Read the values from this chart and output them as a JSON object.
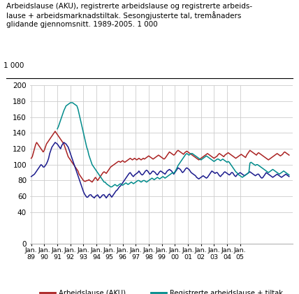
{
  "title_line1": "Arbeidslause (AKU), registrerte arbeidslause og registrerte arbeids-",
  "title_line2": "lause + arbeidsmarknadstiltak. Sesongjusterte tal, tremånaders",
  "title_line3": "glidande gjennomsnitt. 1989-2005. 1 000",
  "ylabel_top": "1 000",
  "ylim": [
    0,
    200
  ],
  "yticks": [
    0,
    40,
    60,
    80,
    100,
    120,
    140,
    160,
    180,
    200
  ],
  "legend": [
    {
      "label": "Arbeidslause (AKU)",
      "color": "#aa2222"
    },
    {
      "label": "Registrerte arbeidslause",
      "color": "#1a1a8c"
    },
    {
      "label": "Registrerte arbeidslause + tiltak",
      "color": "#008b8b"
    }
  ],
  "background_color": "#ffffff",
  "grid_color": "#cccccc",
  "aku": [
    108,
    110,
    115,
    120,
    125,
    128,
    126,
    124,
    122,
    120,
    118,
    116,
    118,
    122,
    126,
    128,
    130,
    132,
    134,
    136,
    138,
    140,
    142,
    140,
    138,
    136,
    134,
    132,
    130,
    128,
    126,
    122,
    118,
    114,
    110,
    108,
    106,
    104,
    102,
    100,
    98,
    96,
    94,
    92,
    88,
    86,
    84,
    82,
    80,
    79,
    79,
    80,
    80,
    81,
    80,
    79,
    78,
    80,
    82,
    84,
    82,
    80,
    82,
    84,
    86,
    88,
    90,
    91,
    90,
    89,
    91,
    93,
    95,
    97,
    98,
    99,
    100,
    101,
    102,
    103,
    104,
    104,
    103,
    104,
    105,
    104,
    103,
    104,
    105,
    106,
    107,
    108,
    107,
    106,
    107,
    108,
    107,
    106,
    107,
    108,
    107,
    106,
    107,
    108,
    107,
    108,
    109,
    110,
    111,
    110,
    109,
    108,
    107,
    108,
    109,
    110,
    111,
    112,
    111,
    110,
    109,
    108,
    107,
    108,
    110,
    112,
    114,
    116,
    115,
    114,
    113,
    112,
    113,
    115,
    117,
    118,
    117,
    116,
    115,
    114,
    113,
    115,
    116,
    117,
    116,
    115,
    114,
    113,
    112,
    111,
    110,
    109,
    108,
    107,
    106,
    107,
    108,
    109,
    110,
    111,
    112,
    113,
    114,
    113,
    112,
    111,
    110,
    109,
    108,
    109,
    110,
    111,
    113,
    114,
    113,
    112,
    111,
    110,
    112,
    113,
    114,
    115,
    114,
    113,
    112,
    111,
    110,
    109,
    108,
    109,
    110,
    111,
    112,
    113,
    112,
    111,
    110,
    109,
    112,
    114,
    116,
    118,
    117,
    116,
    115,
    114,
    113,
    112,
    114,
    115,
    114,
    113,
    112,
    111,
    110,
    109,
    108,
    107,
    106,
    107,
    108,
    109,
    110,
    111,
    112,
    113,
    114,
    113,
    112,
    111,
    112,
    113,
    115,
    116,
    115,
    114,
    113,
    112
  ],
  "reg": [
    85,
    86,
    87,
    88,
    90,
    92,
    94,
    96,
    98,
    100,
    99,
    97,
    97,
    99,
    101,
    104,
    108,
    114,
    118,
    122,
    124,
    126,
    128,
    127,
    126,
    124,
    122,
    120,
    124,
    126,
    128,
    127,
    126,
    124,
    122,
    118,
    114,
    110,
    106,
    102,
    98,
    94,
    90,
    86,
    82,
    78,
    74,
    70,
    66,
    63,
    61,
    59,
    59,
    61,
    62,
    62,
    60,
    59,
    58,
    60,
    61,
    62,
    60,
    58,
    59,
    61,
    62,
    62,
    60,
    58,
    60,
    62,
    63,
    61,
    59,
    61,
    63,
    65,
    67,
    68,
    70,
    72,
    73,
    75,
    77,
    79,
    81,
    83,
    85,
    87,
    89,
    90,
    88,
    86,
    85,
    87,
    88,
    89,
    90,
    92,
    90,
    88,
    87,
    88,
    90,
    92,
    93,
    92,
    90,
    88,
    89,
    91,
    92,
    91,
    90,
    88,
    87,
    89,
    91,
    92,
    91,
    90,
    89,
    88,
    90,
    92,
    93,
    94,
    93,
    92,
    90,
    88,
    90,
    92,
    94,
    96,
    95,
    94,
    92,
    90,
    91,
    93,
    95,
    96,
    95,
    94,
    92,
    90,
    89,
    88,
    87,
    86,
    84,
    83,
    82,
    83,
    84,
    85,
    86,
    85,
    84,
    83,
    84,
    86,
    88,
    90,
    92,
    91,
    90,
    89,
    90,
    90,
    88,
    86,
    85,
    87,
    88,
    90,
    91,
    90,
    89,
    88,
    87,
    88,
    90,
    90,
    88,
    86,
    85,
    87,
    88,
    89,
    90,
    89,
    88,
    87,
    86,
    87,
    88,
    89,
    90,
    91,
    90,
    89,
    88,
    87,
    86,
    87,
    88,
    88,
    86,
    84,
    83,
    84,
    86,
    88,
    90,
    89,
    88,
    87,
    86,
    85,
    84,
    85,
    86,
    87,
    88,
    87,
    86,
    85,
    84,
    85,
    86,
    87,
    88,
    87,
    86,
    85
  ],
  "tiltak": [
    null,
    null,
    null,
    null,
    null,
    null,
    null,
    null,
    null,
    null,
    null,
    null,
    null,
    null,
    null,
    null,
    null,
    null,
    null,
    null,
    null,
    null,
    null,
    null,
    145,
    148,
    152,
    156,
    160,
    164,
    168,
    171,
    174,
    175,
    176,
    177,
    178,
    178,
    178,
    177,
    176,
    175,
    174,
    170,
    164,
    158,
    152,
    146,
    140,
    134,
    128,
    122,
    118,
    112,
    108,
    104,
    100,
    98,
    96,
    94,
    92,
    90,
    88,
    86,
    84,
    82,
    80,
    78,
    78,
    76,
    75,
    74,
    73,
    72,
    72,
    73,
    74,
    75,
    74,
    73,
    74,
    75,
    76,
    75,
    74,
    75,
    76,
    77,
    76,
    75,
    76,
    77,
    78,
    77,
    76,
    77,
    78,
    79,
    80,
    80,
    79,
    78,
    79,
    80,
    80,
    79,
    78,
    79,
    80,
    81,
    82,
    83,
    82,
    81,
    82,
    83,
    84,
    83,
    82,
    83,
    84,
    85,
    84,
    83,
    84,
    85,
    86,
    87,
    88,
    89,
    90,
    89,
    91,
    93,
    96,
    99,
    101,
    103,
    105,
    107,
    109,
    111,
    113,
    114,
    113,
    112,
    113,
    114,
    114,
    113,
    112,
    111,
    110,
    109,
    108,
    107,
    106,
    107,
    108,
    109,
    110,
    111,
    110,
    109,
    108,
    107,
    106,
    105,
    104,
    105,
    106,
    107,
    107,
    106,
    105,
    106,
    107,
    106,
    105,
    104,
    103,
    104,
    103,
    101,
    99,
    97,
    95,
    93,
    91,
    90,
    88,
    87,
    86,
    85,
    84,
    85,
    86,
    87,
    88,
    89,
    90,
    102,
    103,
    102,
    101,
    100,
    99,
    100,
    100,
    99,
    98,
    97,
    96,
    95,
    94,
    93,
    92,
    91,
    90,
    91,
    92,
    93,
    94,
    93,
    92,
    91,
    90,
    89,
    88,
    89,
    90,
    91,
    92,
    91,
    90,
    89,
    88,
    87
  ]
}
